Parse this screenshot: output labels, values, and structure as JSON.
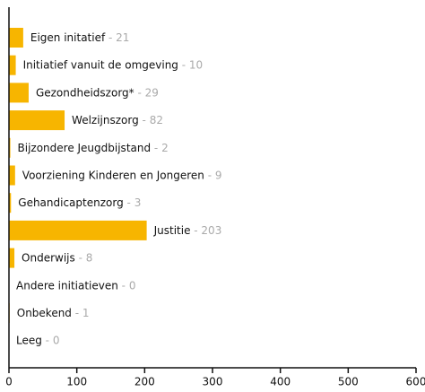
{
  "chart_data": {
    "type": "barh",
    "categories": [
      "Eigen initatief",
      "Initiatief vanuit de omgeving",
      "Gezondheidszorg*",
      "Welzijnszorg",
      "Bijzondere Jeugdbijstand",
      "Voorziening Kinderen en Jongeren",
      "Gehandicaptenzorg",
      "Justitie",
      "Onderwijs",
      "Andere initiatieven",
      "Onbekend",
      "Leeg"
    ],
    "values": [
      21,
      10,
      29,
      82,
      2,
      9,
      3,
      203,
      8,
      0,
      1,
      0
    ],
    "label_separator": " - ",
    "color": "#f7b500",
    "xlim": [
      0,
      600
    ],
    "xticks": [
      0,
      100,
      200,
      300,
      400,
      500,
      600
    ]
  }
}
